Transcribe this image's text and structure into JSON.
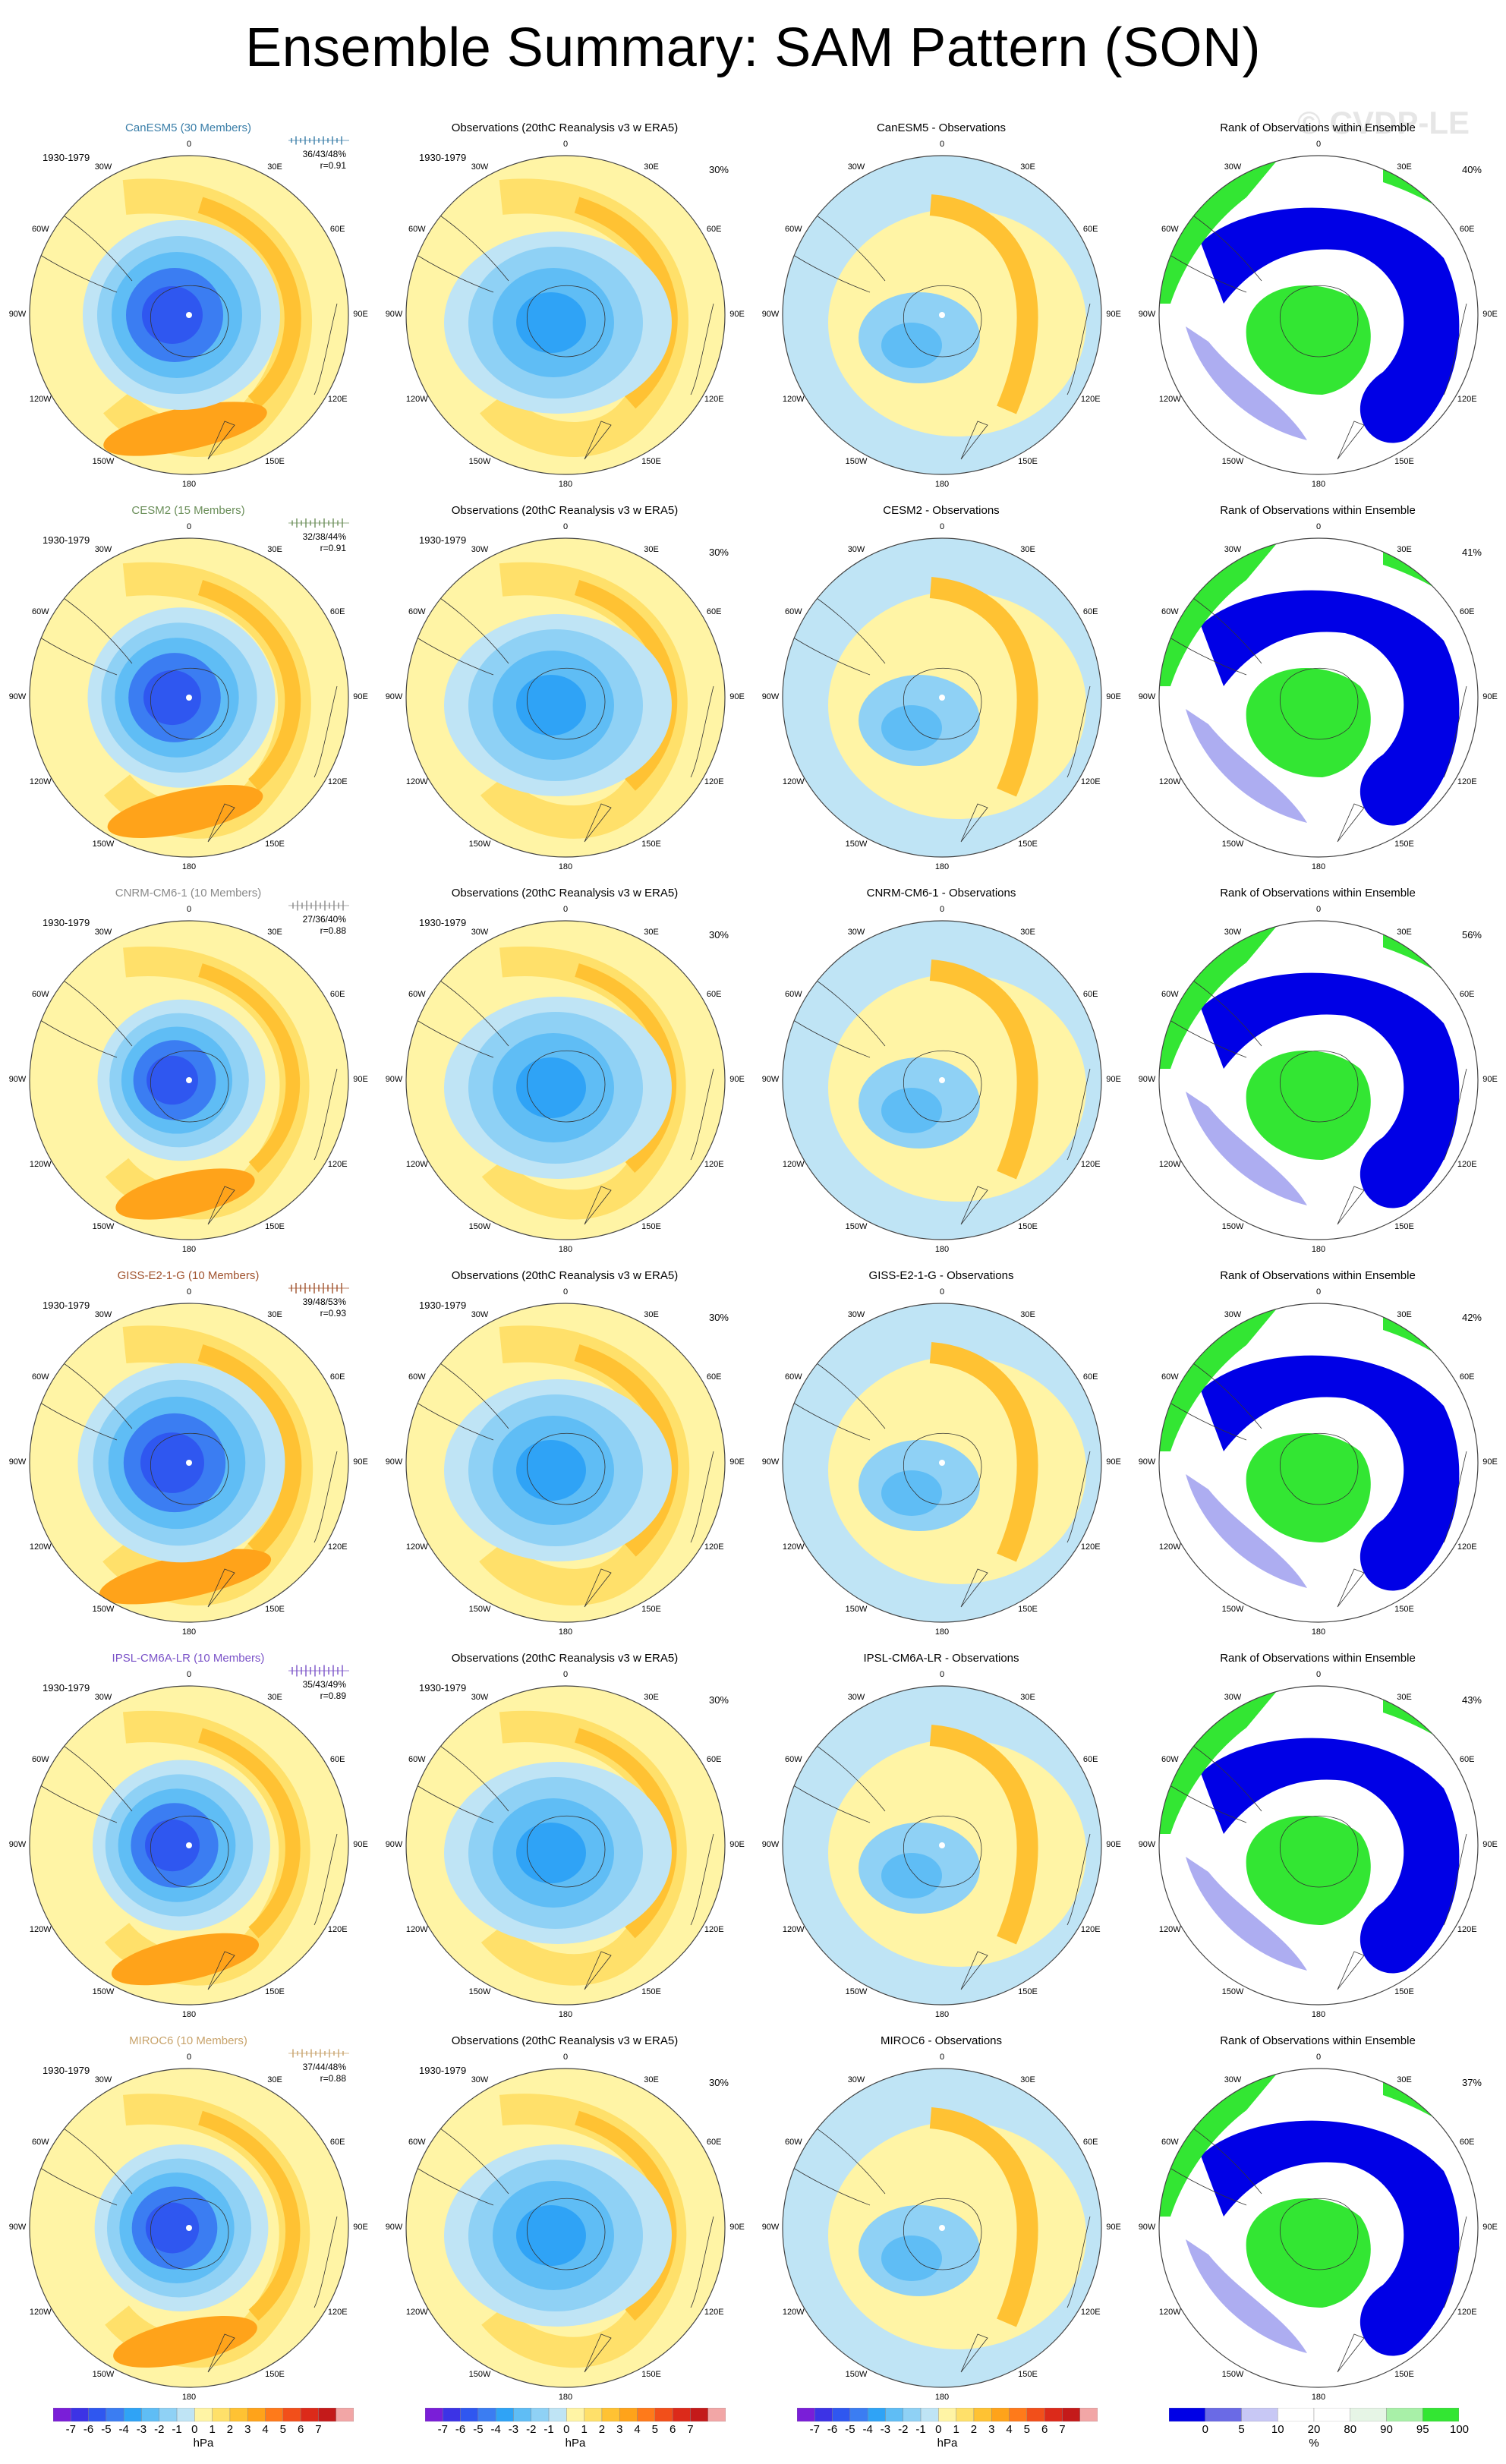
{
  "title": "Ensemble Summary: SAM Pattern (SON)",
  "watermark": "© CVDP-LE",
  "period": "1930-1979",
  "obs_title": "Observations (20thC Reanalysis v3 w ERA5)",
  "rank_title": "Rank of Observations within Ensemble",
  "longitude_labels": {
    "top": "0",
    "r30": "30E",
    "r60": "60E",
    "r90": "90E",
    "r120": "120E",
    "r150": "150E",
    "bottom": "180",
    "l150": "150W",
    "l120": "120W",
    "l90": "90W",
    "l60": "60W",
    "l30": "30W"
  },
  "rows": [
    {
      "model_title": "CanESM5 (30 Members)",
      "model_color": "#3a7ea8",
      "stats": "36/43/48%",
      "r": "r=0.91",
      "diff_title": "CanESM5 - Observations",
      "rank_pct": "40%",
      "obs_pct": "30%",
      "model_strength": 1.0,
      "shift": 0.0
    },
    {
      "model_title": "CESM2 (15 Members)",
      "model_color": "#6b8f5a",
      "stats": "32/38/44%",
      "r": "r=0.91",
      "diff_title": "CESM2 - Observations",
      "rank_pct": "41%",
      "obs_pct": "30%",
      "model_strength": 0.95,
      "shift": 0.06
    },
    {
      "model_title": "CNRM-CM6-1 (10 Members)",
      "model_color": "#8a8a8a",
      "stats": "27/36/40%",
      "r": "r=0.88",
      "diff_title": "CNRM-CM6-1 - Observations",
      "rank_pct": "56%",
      "obs_pct": "30%",
      "model_strength": 0.85,
      "shift": 0.12
    },
    {
      "model_title": "GISS-E2-1-G (10 Members)",
      "model_color": "#a0522d",
      "stats": "39/48/53%",
      "r": "r=0.93",
      "diff_title": "GISS-E2-1-G - Observations",
      "rank_pct": "42%",
      "obs_pct": "30%",
      "model_strength": 1.05,
      "shift": 0.18
    },
    {
      "model_title": "IPSL-CM6A-LR (10 Members)",
      "model_color": "#7a52c8",
      "stats": "35/43/49%",
      "r": "r=0.89",
      "diff_title": "IPSL-CM6A-LR - Observations",
      "rank_pct": "43%",
      "obs_pct": "30%",
      "model_strength": 0.9,
      "shift": 0.24
    },
    {
      "model_title": "MIROC6 (10 Members)",
      "model_color": "#c8a36b",
      "stats": "37/44/48%",
      "r": "r=0.88",
      "diff_title": "MIROC6 - Observations",
      "rank_pct": "37%",
      "obs_pct": "30%",
      "model_strength": 0.88,
      "shift": 0.3
    }
  ],
  "colorbar_hpa": {
    "unit": "hPa",
    "colors": [
      "#7a1ed8",
      "#3c33e6",
      "#2f57f0",
      "#3b7df2",
      "#2fa3f6",
      "#5fbdf5",
      "#8fd1f5",
      "#bfe4f5",
      "#fff4a5",
      "#ffe06a",
      "#ffc233",
      "#ffa31a",
      "#ff7a1a",
      "#f24f1a",
      "#dc2a1a",
      "#c41a1a",
      "#f2a6a6"
    ],
    "ticks": [
      "-7",
      "-6",
      "-5",
      "-4",
      "-3",
      "-2",
      "-1",
      "0",
      "1",
      "2",
      "3",
      "4",
      "5",
      "6",
      "7"
    ]
  },
  "colorbar_rank": {
    "unit": "%",
    "colors": [
      "#0000e6",
      "#6a6ae6",
      "#c8c8f5",
      "#ffffff",
      "#ffffff",
      "#e6f5e6",
      "#a8f0a8",
      "#33e633"
    ],
    "ticks": [
      "0",
      "5",
      "10",
      "20",
      "80",
      "90",
      "95",
      "100"
    ]
  }
}
